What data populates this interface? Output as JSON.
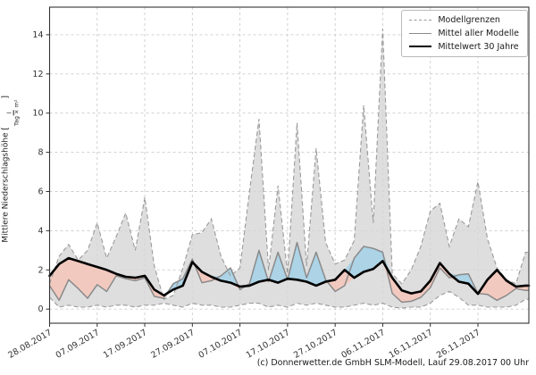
{
  "figure": {
    "caption": "(c) Donnerwetter.de GmbH SLM-Modell, Lauf 29.08.2017 00 Uhr"
  },
  "chart_data": {
    "type": "area",
    "title": "",
    "xlabel": "",
    "ylabel_prefix": "Mittlere Niederschlagshöhe [",
    "ylabel_fraction_numerator": "l",
    "ylabel_fraction_denominator": "Tag × m²",
    "ylabel_suffix": "]",
    "grid": true,
    "legend_position": "upper right",
    "x_tick_labels": [
      "28.08.2017",
      "07.09.2017",
      "17.09.2017",
      "27.09.2017",
      "07.10.2017",
      "17.10.2017",
      "27.10.2017",
      "06.11.2017",
      "16.11.2017",
      "26.11.2017"
    ],
    "x_tick_days": [
      0,
      10,
      20,
      30,
      40,
      50,
      60,
      70,
      80,
      90
    ],
    "x_domain_days": [
      0,
      100.7
    ],
    "y_ticks": [
      0,
      2,
      4,
      6,
      8,
      10,
      12,
      14
    ],
    "ylim": [
      -0.72,
      15.4
    ],
    "days": [
      0,
      2,
      4,
      6,
      8,
      10,
      12,
      14,
      16,
      18,
      20,
      22,
      24,
      26,
      28,
      30,
      32,
      34,
      36,
      38,
      40,
      42,
      44,
      46,
      48,
      50,
      52,
      54,
      56,
      58,
      60,
      62,
      64,
      66,
      68,
      70,
      72,
      74,
      76,
      78,
      80,
      82,
      84,
      86,
      88,
      90,
      92,
      94,
      96,
      98,
      100
    ],
    "series": [
      {
        "name": "Modellgrenzen (obere Grenze)",
        "role": "upper_bound",
        "values": [
          1.3,
          2.7,
          3.3,
          2.5,
          3.0,
          4.4,
          2.6,
          3.7,
          4.9,
          3.0,
          5.7,
          2.2,
          0.5,
          0.7,
          2.1,
          3.8,
          3.9,
          4.6,
          2.7,
          1.7,
          2.1,
          6.0,
          9.7,
          2.0,
          6.3,
          1.8,
          9.5,
          2.2,
          8.2,
          3.4,
          2.3,
          2.5,
          3.5,
          10.4,
          4.4,
          14.3,
          1.8,
          1.3,
          2.0,
          3.2,
          5.0,
          5.4,
          3.2,
          4.6,
          4.2,
          6.5,
          3.6,
          2.1,
          1.5,
          1.3,
          2.9
        ]
      },
      {
        "name": "Modellgrenzen (untere Grenze)",
        "role": "lower_bound",
        "values": [
          0.6,
          0.1,
          0.2,
          0.1,
          0.1,
          0.2,
          0.1,
          0.2,
          0.2,
          0.1,
          0.2,
          0.2,
          0.3,
          0.2,
          0.1,
          0.3,
          0.2,
          0.2,
          0.1,
          0.1,
          0.2,
          0.3,
          0.3,
          0.1,
          0.2,
          0.1,
          0.3,
          0.2,
          0.3,
          0.2,
          0.1,
          0.1,
          0.2,
          0.3,
          0.2,
          0.3,
          0.1,
          0.05,
          0.1,
          0.1,
          0.3,
          0.7,
          0.9,
          0.6,
          0.2,
          0.2,
          0.1,
          0.1,
          0.1,
          0.2,
          0.5
        ]
      },
      {
        "name": "Mittel aller Modelle",
        "role": "model_mean",
        "values": [
          1.2,
          0.45,
          1.5,
          1.05,
          0.55,
          1.25,
          0.9,
          1.7,
          1.55,
          1.45,
          1.6,
          0.65,
          0.55,
          1.3,
          1.55,
          2.55,
          1.35,
          1.45,
          1.7,
          2.1,
          1.0,
          1.3,
          3.0,
          1.4,
          2.9,
          1.5,
          3.4,
          1.6,
          2.9,
          1.5,
          0.9,
          1.2,
          2.6,
          3.2,
          3.1,
          2.9,
          0.8,
          0.35,
          0.4,
          0.6,
          1.1,
          2.1,
          1.6,
          1.75,
          1.8,
          0.8,
          0.75,
          0.45,
          0.7,
          1.05,
          0.95
        ]
      },
      {
        "name": "Mittelwert 30 Jahre",
        "role": "climate_mean",
        "values": [
          1.7,
          2.3,
          2.6,
          2.45,
          2.3,
          2.15,
          2.0,
          1.8,
          1.65,
          1.6,
          1.7,
          1.0,
          0.7,
          1.0,
          1.2,
          2.4,
          1.9,
          1.65,
          1.45,
          1.35,
          1.15,
          1.2,
          1.4,
          1.5,
          1.35,
          1.55,
          1.5,
          1.4,
          1.2,
          1.4,
          1.5,
          2.0,
          1.6,
          1.9,
          2.05,
          2.45,
          1.6,
          0.95,
          0.8,
          0.9,
          1.45,
          2.35,
          1.8,
          1.4,
          1.3,
          0.78,
          1.5,
          2.0,
          1.45,
          1.15,
          1.2
        ]
      }
    ],
    "legend": [
      {
        "label": "Modellgrenzen",
        "style": "dashed-gray"
      },
      {
        "label": "Mittel aller Modelle",
        "style": "solid-gray"
      },
      {
        "label": "Mittelwert 30 Jahre",
        "style": "solid-black-thick"
      }
    ],
    "colors": {
      "band_fill": "#d6d6d6",
      "band_edge": "#9a9a9a",
      "above_fill": "#a9d2e6",
      "below_fill": "#f2c7bd",
      "model_mean_line": "#8a8a8a",
      "climate_mean_line": "#000000",
      "grid": "#cccccc",
      "spine": "#333333",
      "text": "#333333"
    }
  }
}
